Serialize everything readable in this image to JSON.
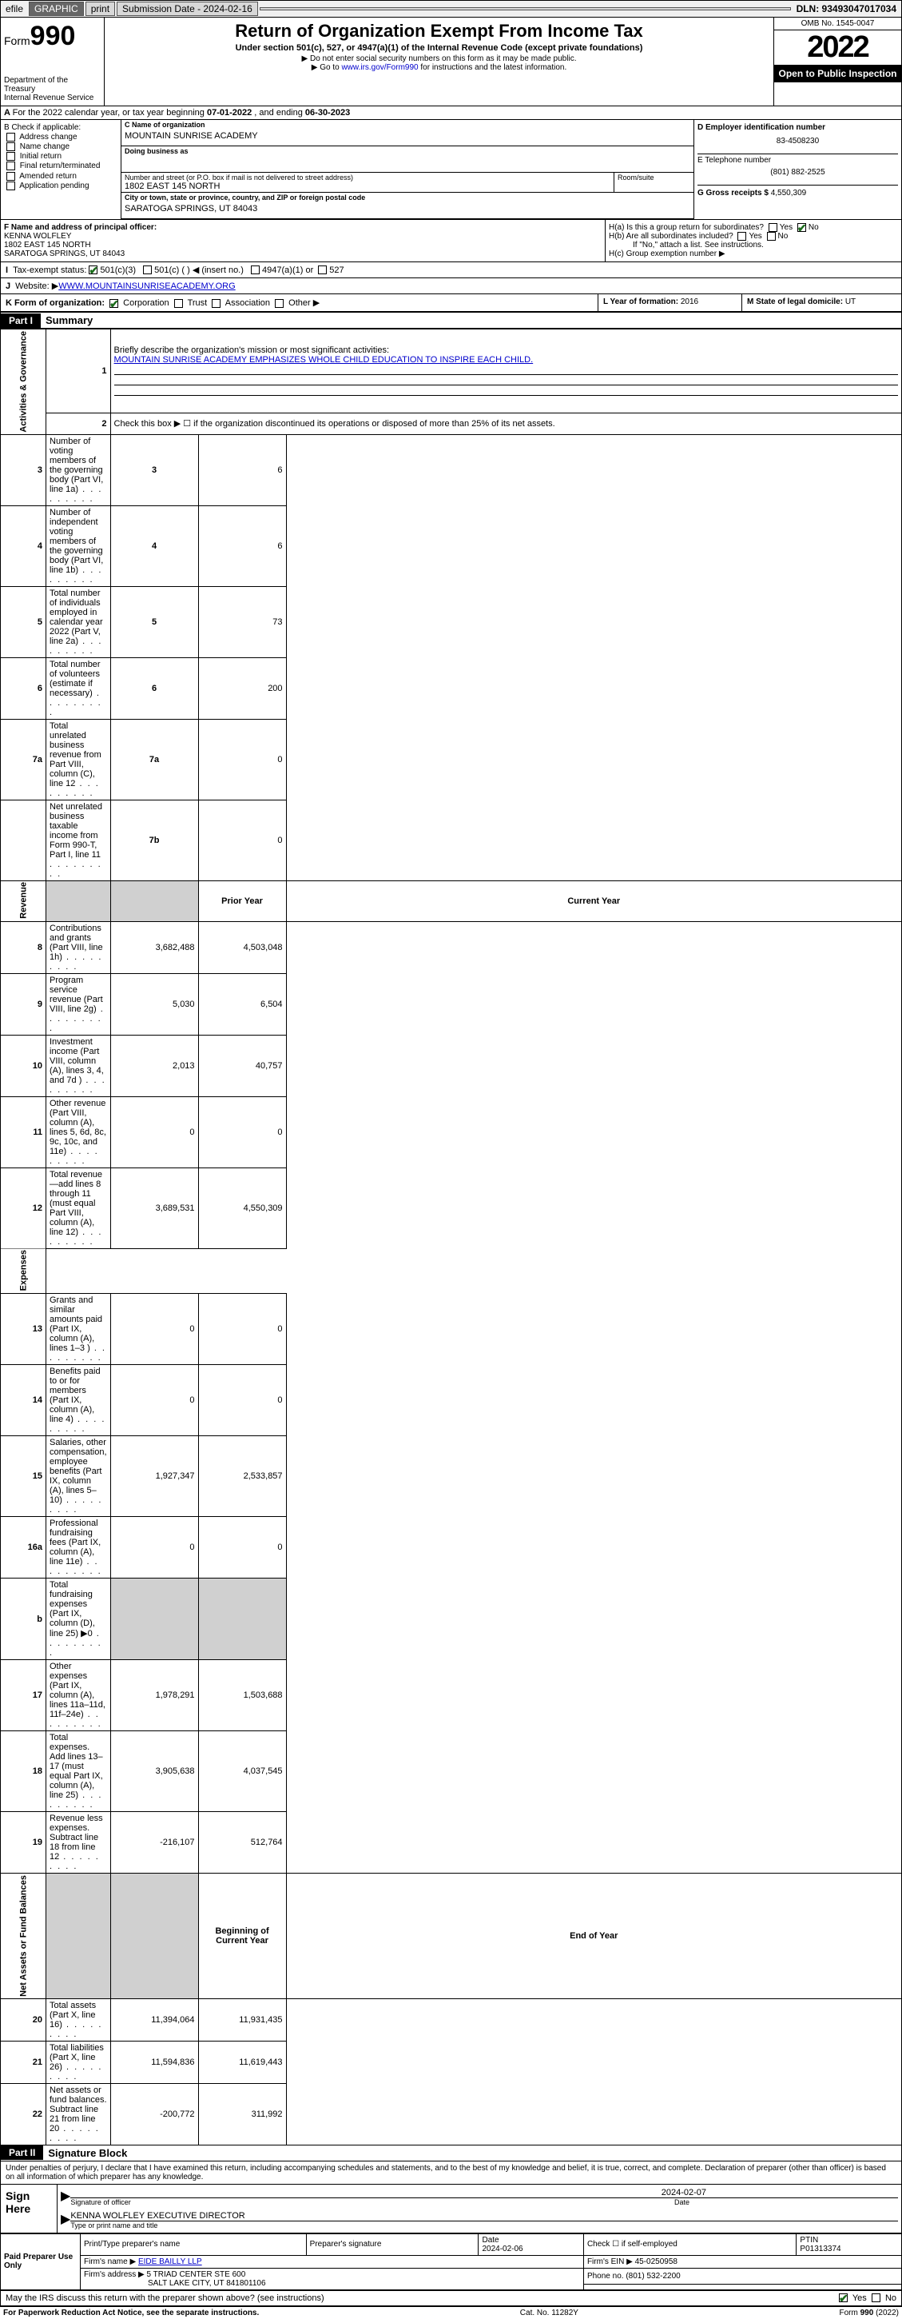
{
  "topbar": {
    "efile": "efile",
    "graphic": "GRAPHIC",
    "print": "print",
    "sub_label": "Submission Date - 2024-02-16",
    "dln": "DLN: 93493047017034"
  },
  "header": {
    "form": "Form",
    "form_no": "990",
    "dept": "Department of the Treasury",
    "irs": "Internal Revenue Service",
    "title": "Return of Organization Exempt From Income Tax",
    "sub1": "Under section 501(c), 527, or 4947(a)(1) of the Internal Revenue Code (except private foundations)",
    "sub2": "▶ Do not enter social security numbers on this form as it may be made public.",
    "sub3_a": "▶ Go to ",
    "sub3_link": "www.irs.gov/Form990",
    "sub3_b": " for instructions and the latest information.",
    "omb": "OMB No. 1545-0047",
    "year": "2022",
    "inspect": "Open to Public Inspection"
  },
  "row_a": {
    "text_a": "For the 2022 calendar year, or tax year beginning ",
    "begin": "07-01-2022",
    "text_b": " , and ending ",
    "end": "06-30-2023"
  },
  "col_b": {
    "label": "B Check if applicable:",
    "c1": "Address change",
    "c2": "Name change",
    "c3": "Initial return",
    "c4": "Final return/terminated",
    "c5": "Amended return",
    "c6": "Application pending"
  },
  "col_c": {
    "name_lbl": "C Name of organization",
    "name": "MOUNTAIN SUNRISE ACADEMY",
    "dba_lbl": "Doing business as",
    "street_lbl": "Number and street (or P.O. box if mail is not delivered to street address)",
    "street": "1802 EAST 145 NORTH",
    "room_lbl": "Room/suite",
    "city_lbl": "City or town, state or province, country, and ZIP or foreign postal code",
    "city": "SARATOGA SPRINGS, UT  84043"
  },
  "col_d": {
    "d_lbl": "D Employer identification number",
    "ein": "83-4508230",
    "e_lbl": "E Telephone number",
    "phone": "(801) 882-2525",
    "g_lbl": "G Gross receipts $ ",
    "gross": "4,550,309"
  },
  "sec_f": {
    "lbl": "F Name and address of principal officer:",
    "name": "KENNA WOLFLEY",
    "addr1": "1802 EAST 145 NORTH",
    "addr2": "SARATOGA SPRINGS, UT  84043"
  },
  "sec_h": {
    "ha": "H(a)  Is this a group return for subordinates?",
    "hb": "H(b)  Are all subordinates included?",
    "hb_note": "If \"No,\" attach a list. See instructions.",
    "hc": "H(c)  Group exemption number ▶",
    "yes": "Yes",
    "no": "No"
  },
  "row_i": {
    "lbl": "Tax-exempt status:",
    "c1": "501(c)(3)",
    "c2": "501(c) (   ) ◀ (insert no.)",
    "c3": "4947(a)(1) or",
    "c4": "527"
  },
  "row_j": {
    "lbl": "J",
    "txt": "Website: ▶ ",
    "val": "WWW.MOUNTAINSUNRISEACADEMY.ORG"
  },
  "row_k": {
    "lbl": "K Form of organization:",
    "c1": "Corporation",
    "c2": "Trust",
    "c3": "Association",
    "c4": "Other ▶",
    "l_lbl": "L Year of formation: ",
    "l_val": "2016",
    "m_lbl": "M State of legal domicile: ",
    "m_val": "UT"
  },
  "part1": {
    "hdr": "Part I",
    "title": "Summary",
    "q1_lbl": "1",
    "q1": "Briefly describe the organization's mission or most significant activities:",
    "q1_val": "MOUNTAIN SUNRISE ACADEMY EMPHASIZES WHOLE CHILD EDUCATION TO INSPIRE EACH CHILD.",
    "q2_lbl": "2",
    "q2": "Check this box ▶ ☐  if the organization discontinued its operations or disposed of more than 25% of its net assets.",
    "sidelabels": {
      "gov": "Activities & Governance",
      "rev": "Revenue",
      "exp": "Expenses",
      "net": "Net Assets or Fund Balances"
    },
    "rows_gov": [
      {
        "n": "3",
        "d": "Number of voting members of the governing body (Part VI, line 1a)",
        "b": "3",
        "v": "6"
      },
      {
        "n": "4",
        "d": "Number of independent voting members of the governing body (Part VI, line 1b)",
        "b": "4",
        "v": "6"
      },
      {
        "n": "5",
        "d": "Total number of individuals employed in calendar year 2022 (Part V, line 2a)",
        "b": "5",
        "v": "73"
      },
      {
        "n": "6",
        "d": "Total number of volunteers (estimate if necessary)",
        "b": "6",
        "v": "200"
      },
      {
        "n": "7a",
        "d": "Total unrelated business revenue from Part VIII, column (C), line 12",
        "b": "7a",
        "v": "0"
      },
      {
        "n": "",
        "d": "Net unrelated business taxable income from Form 990-T, Part I, line 11",
        "b": "7b",
        "v": "0"
      }
    ],
    "hdr_prior": "Prior Year",
    "hdr_curr": "Current Year",
    "rows_rev": [
      {
        "n": "8",
        "d": "Contributions and grants (Part VIII, line 1h)",
        "p": "3,682,488",
        "c": "4,503,048"
      },
      {
        "n": "9",
        "d": "Program service revenue (Part VIII, line 2g)",
        "p": "5,030",
        "c": "6,504"
      },
      {
        "n": "10",
        "d": "Investment income (Part VIII, column (A), lines 3, 4, and 7d )",
        "p": "2,013",
        "c": "40,757"
      },
      {
        "n": "11",
        "d": "Other revenue (Part VIII, column (A), lines 5, 6d, 8c, 9c, 10c, and 11e)",
        "p": "0",
        "c": "0"
      },
      {
        "n": "12",
        "d": "Total revenue—add lines 8 through 11 (must equal Part VIII, column (A), line 12)",
        "p": "3,689,531",
        "c": "4,550,309"
      }
    ],
    "rows_exp": [
      {
        "n": "13",
        "d": "Grants and similar amounts paid (Part IX, column (A), lines 1–3 )",
        "p": "0",
        "c": "0"
      },
      {
        "n": "14",
        "d": "Benefits paid to or for members (Part IX, column (A), line 4)",
        "p": "0",
        "c": "0"
      },
      {
        "n": "15",
        "d": "Salaries, other compensation, employee benefits (Part IX, column (A), lines 5–10)",
        "p": "1,927,347",
        "c": "2,533,857"
      },
      {
        "n": "16a",
        "d": "Professional fundraising fees (Part IX, column (A), line 11e)",
        "p": "0",
        "c": "0"
      },
      {
        "n": "b",
        "d": "Total fundraising expenses (Part IX, column (D), line 25) ▶0",
        "p": "",
        "c": "",
        "grey": true
      },
      {
        "n": "17",
        "d": "Other expenses (Part IX, column (A), lines 11a–11d, 11f–24e)",
        "p": "1,978,291",
        "c": "1,503,688"
      },
      {
        "n": "18",
        "d": "Total expenses. Add lines 13–17 (must equal Part IX, column (A), line 25)",
        "p": "3,905,638",
        "c": "4,037,545"
      },
      {
        "n": "19",
        "d": "Revenue less expenses. Subtract line 18 from line 12",
        "p": "-216,107",
        "c": "512,764"
      }
    ],
    "hdr_begin": "Beginning of Current Year",
    "hdr_end": "End of Year",
    "rows_net": [
      {
        "n": "20",
        "d": "Total assets (Part X, line 16)",
        "p": "11,394,064",
        "c": "11,931,435"
      },
      {
        "n": "21",
        "d": "Total liabilities (Part X, line 26)",
        "p": "11,594,836",
        "c": "11,619,443"
      },
      {
        "n": "22",
        "d": "Net assets or fund balances. Subtract line 21 from line 20",
        "p": "-200,772",
        "c": "311,992"
      }
    ]
  },
  "part2": {
    "hdr": "Part II",
    "title": "Signature Block",
    "decl": "Under penalties of perjury, I declare that I have examined this return, including accompanying schedules and statements, and to the best of my knowledge and belief, it is true, correct, and complete. Declaration of preparer (other than officer) is based on all information of which preparer has any knowledge.",
    "sign_here": "Sign Here",
    "sig_officer": "Signature of officer",
    "sig_date_lbl": "Date",
    "sig_date": "2024-02-07",
    "sig_name": "KENNA WOLFLEY  EXECUTIVE DIRECTOR",
    "sig_name_lbl": "Type or print name and title",
    "paid": "Paid Preparer Use Only",
    "prep_name_lbl": "Print/Type preparer's name",
    "prep_sig_lbl": "Preparer's signature",
    "prep_date_lbl": "Date",
    "prep_date": "2024-02-06",
    "prep_self": "Check ☐ if self-employed",
    "ptin_lbl": "PTIN",
    "ptin": "P01313374",
    "firm_name_lbl": "Firm's name    ▶ ",
    "firm_name": "EIDE BAILLY LLP",
    "firm_ein_lbl": "Firm's EIN ▶ ",
    "firm_ein": "45-0250958",
    "firm_addr_lbl": "Firm's address ▶ ",
    "firm_addr1": "5 TRIAD CENTER STE 600",
    "firm_addr2": "SALT LAKE CITY, UT  841801106",
    "firm_phone_lbl": "Phone no. ",
    "firm_phone": "(801) 532-2200",
    "discuss": "May the IRS discuss this return with the preparer shown above? (see instructions)",
    "yes": "Yes",
    "no": "No"
  },
  "footer": {
    "left": "For Paperwork Reduction Act Notice, see the separate instructions.",
    "mid": "Cat. No. 11282Y",
    "right": "Form 990 (2022)"
  }
}
